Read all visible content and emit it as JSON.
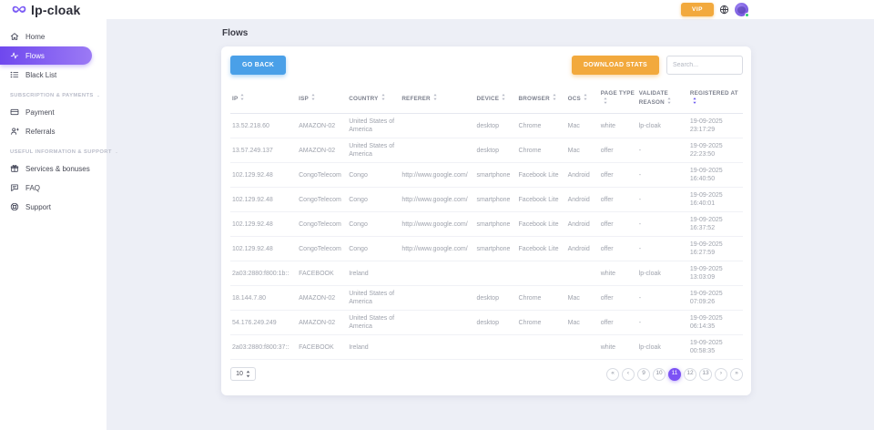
{
  "topbar": {
    "logo_text": "lp-cloak",
    "vip_label": "VIP"
  },
  "sidebar": {
    "sections": [
      {
        "header": "",
        "items": [
          {
            "label": "Home",
            "icon": "home-icon",
            "active": false
          },
          {
            "label": "Flows",
            "icon": "flows-icon",
            "active": true
          },
          {
            "label": "Black List",
            "icon": "blacklist-icon",
            "active": false
          }
        ]
      },
      {
        "header": "SUBSCRIPTION & PAYMENTS",
        "items": [
          {
            "label": "Payment",
            "icon": "payment-icon",
            "active": false
          },
          {
            "label": "Referrals",
            "icon": "referrals-icon",
            "active": false
          }
        ]
      },
      {
        "header": "USEFUL INFORMATION & SUPPORT",
        "items": [
          {
            "label": "Services & bonuses",
            "icon": "gift-icon",
            "active": false
          },
          {
            "label": "FAQ",
            "icon": "faq-icon",
            "active": false
          },
          {
            "label": "Support",
            "icon": "support-icon",
            "active": false
          }
        ]
      }
    ]
  },
  "page": {
    "title": "Flows"
  },
  "toolbar": {
    "go_back_label": "GO BACK",
    "download_stats_label": "DOWNLOAD STATS",
    "search_placeholder": "Search..."
  },
  "table": {
    "columns": [
      {
        "label": "IP",
        "sorted": false
      },
      {
        "label": "ISP",
        "sorted": false
      },
      {
        "label": "COUNTRY",
        "sorted": false
      },
      {
        "label": "REFERER",
        "sorted": false
      },
      {
        "label": "DEVICE",
        "sorted": false
      },
      {
        "label": "BROWSER",
        "sorted": false
      },
      {
        "label": "OCS",
        "sorted": false
      },
      {
        "label": "PAGE TYPE",
        "sorted": false
      },
      {
        "label": "VALIDATE REASON",
        "sorted": false
      },
      {
        "label": "REGISTERED AT",
        "sorted": true
      }
    ],
    "rows": [
      [
        "13.52.218.60",
        "AMAZON-02",
        "United States of America",
        "",
        "desktop",
        "Chrome",
        "Mac",
        "white",
        "lp-cloak",
        "19-09-2025 23:17:29"
      ],
      [
        "13.57.249.137",
        "AMAZON-02",
        "United States of America",
        "",
        "desktop",
        "Chrome",
        "Mac",
        "offer",
        "-",
        "19-09-2025 22:23:50"
      ],
      [
        "102.129.92.48",
        "CongoTelecom",
        "Congo",
        "http://www.google.com/",
        "smartphone",
        "Facebook Lite",
        "Android",
        "offer",
        "-",
        "19-09-2025 16:40:50"
      ],
      [
        "102.129.92.48",
        "CongoTelecom",
        "Congo",
        "http://www.google.com/",
        "smartphone",
        "Facebook Lite",
        "Android",
        "offer",
        "-",
        "19-09-2025 16:40:01"
      ],
      [
        "102.129.92.48",
        "CongoTelecom",
        "Congo",
        "http://www.google.com/",
        "smartphone",
        "Facebook Lite",
        "Android",
        "offer",
        "-",
        "19-09-2025 16:37:52"
      ],
      [
        "102.129.92.48",
        "CongoTelecom",
        "Congo",
        "http://www.google.com/",
        "smartphone",
        "Facebook Lite",
        "Android",
        "offer",
        "-",
        "19-09-2025 16:27:59"
      ],
      [
        "2a03:2880:f800:1b::",
        "FACEBOOK",
        "Ireland",
        "",
        "",
        "",
        "",
        "white",
        "lp-cloak",
        "19-09-2025 13:03:09"
      ],
      [
        "18.144.7.80",
        "AMAZON-02",
        "United States of America",
        "",
        "desktop",
        "Chrome",
        "Mac",
        "offer",
        "-",
        "19-09-2025 07:09:26"
      ],
      [
        "54.176.249.249",
        "AMAZON-02",
        "United States of America",
        "",
        "desktop",
        "Chrome",
        "Mac",
        "offer",
        "-",
        "19-09-2025 06:14:35"
      ],
      [
        "2a03:2880:f800:37::",
        "FACEBOOK",
        "Ireland",
        "",
        "",
        "",
        "",
        "white",
        "lp-cloak",
        "19-09-2025 00:58:35"
      ]
    ]
  },
  "footer": {
    "page_size": "10",
    "pagination": [
      {
        "label": "«",
        "name": "first-page-button",
        "active": false
      },
      {
        "label": "‹",
        "name": "prev-page-button",
        "active": false
      },
      {
        "label": "9",
        "name": "page-button-9",
        "active": false
      },
      {
        "label": "10",
        "name": "page-button-10",
        "active": false
      },
      {
        "label": "11",
        "name": "page-button-11",
        "active": true
      },
      {
        "label": "12",
        "name": "page-button-12",
        "active": false
      },
      {
        "label": "13",
        "name": "page-button-13",
        "active": false
      },
      {
        "label": "›",
        "name": "next-page-button",
        "active": false
      },
      {
        "label": "»",
        "name": "last-page-button",
        "active": false
      }
    ]
  },
  "colors": {
    "accent_purple": "#7c52f4",
    "button_blue": "#4aa0e8",
    "button_orange": "#f2a93d",
    "status_green": "#2ecc71"
  }
}
